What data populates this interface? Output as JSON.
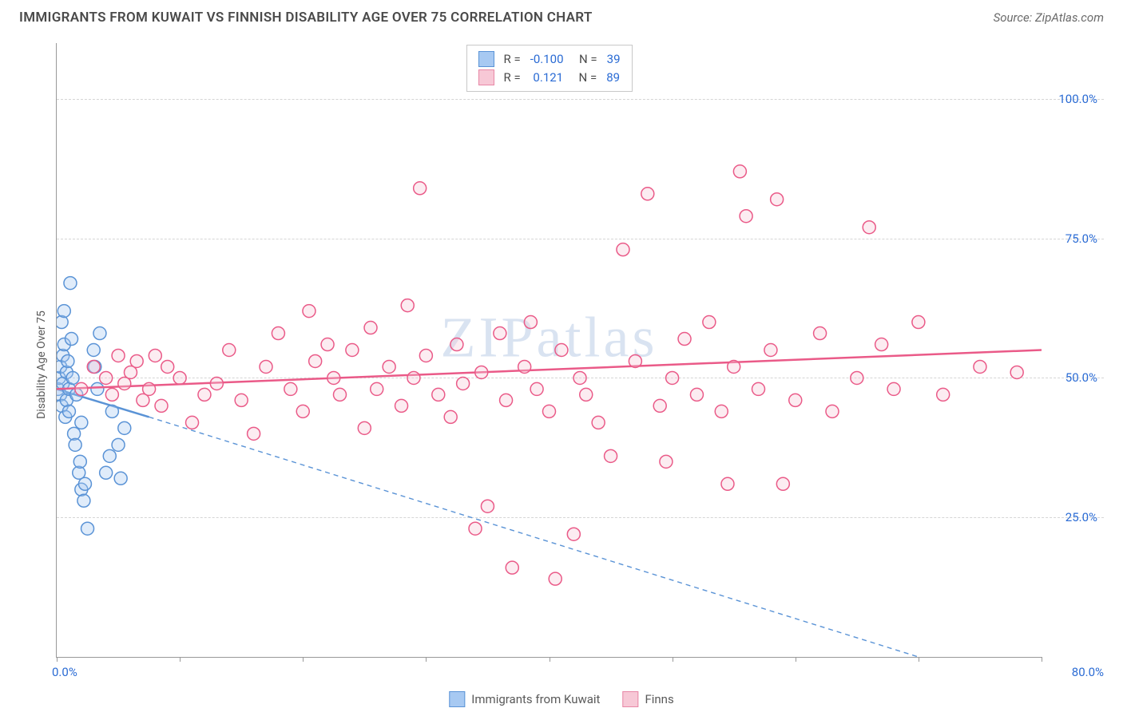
{
  "title": "IMMIGRANTS FROM KUWAIT VS FINNISH DISABILITY AGE OVER 75 CORRELATION CHART",
  "source": "Source: ZipAtlas.com",
  "watermark": "ZIPatlas",
  "y_axis_title": "Disability Age Over 75",
  "chart": {
    "type": "scatter",
    "xlim": [
      0,
      80
    ],
    "ylim": [
      0,
      110
    ],
    "x_ticks": [
      0,
      10,
      20,
      30,
      40,
      50,
      60,
      70,
      80
    ],
    "x_tick_labels_shown": {
      "0": "0.0%",
      "80": "80.0%"
    },
    "y_gridlines": [
      25,
      50,
      75,
      100
    ],
    "y_tick_labels": {
      "25": "25.0%",
      "50": "50.0%",
      "75": "75.0%",
      "100": "100.0%"
    },
    "background_color": "#ffffff",
    "grid_color": "#d5d5d5",
    "axis_color": "#999999",
    "marker_radius": 8,
    "marker_stroke_width": 1.5,
    "marker_fill_opacity": 0.35,
    "series": [
      {
        "name": "Immigrants from Kuwait",
        "color": "#5a93d6",
        "fill": "#a7c9f2",
        "R": "-0.100",
        "N": "39",
        "trend": {
          "x1": 0,
          "y1": 48,
          "x2": 7.5,
          "y2": 43,
          "solid": true,
          "width": 2.5,
          "ext_x1": 7.5,
          "ext_y1": 43,
          "ext_x2": 70,
          "ext_y2": 0,
          "dash": "6,5"
        },
        "points": [
          [
            0.1,
            48
          ],
          [
            0.2,
            50
          ],
          [
            0.3,
            47
          ],
          [
            0.3,
            52
          ],
          [
            0.4,
            45
          ],
          [
            0.5,
            49
          ],
          [
            0.5,
            54
          ],
          [
            0.6,
            56
          ],
          [
            0.7,
            43
          ],
          [
            0.8,
            51
          ],
          [
            0.8,
            46
          ],
          [
            0.9,
            53
          ],
          [
            1.0,
            48
          ],
          [
            1.0,
            44
          ],
          [
            1.1,
            67
          ],
          [
            1.2,
            57
          ],
          [
            1.3,
            50
          ],
          [
            1.4,
            40
          ],
          [
            1.5,
            38
          ],
          [
            1.6,
            47
          ],
          [
            1.8,
            33
          ],
          [
            1.9,
            35
          ],
          [
            2.0,
            30
          ],
          [
            2.0,
            42
          ],
          [
            2.2,
            28
          ],
          [
            2.3,
            31
          ],
          [
            2.5,
            23
          ],
          [
            3.0,
            55
          ],
          [
            3.1,
            52
          ],
          [
            3.3,
            48
          ],
          [
            3.5,
            58
          ],
          [
            4.0,
            33
          ],
          [
            4.3,
            36
          ],
          [
            4.5,
            44
          ],
          [
            5.0,
            38
          ],
          [
            5.2,
            32
          ],
          [
            5.5,
            41
          ],
          [
            0.4,
            60
          ],
          [
            0.6,
            62
          ]
        ]
      },
      {
        "name": "Finns",
        "color": "#ea5a88",
        "fill": "#f7c8d6",
        "R": "0.121",
        "N": "89",
        "trend": {
          "x1": 0,
          "y1": 48,
          "x2": 80,
          "y2": 55,
          "solid": true,
          "width": 2.5
        },
        "points": [
          [
            2,
            48
          ],
          [
            3,
            52
          ],
          [
            4,
            50
          ],
          [
            4.5,
            47
          ],
          [
            5,
            54
          ],
          [
            5.5,
            49
          ],
          [
            6,
            51
          ],
          [
            6.5,
            53
          ],
          [
            7,
            46
          ],
          [
            7.5,
            48
          ],
          [
            8,
            54
          ],
          [
            8.5,
            45
          ],
          [
            9,
            52
          ],
          [
            10,
            50
          ],
          [
            11,
            42
          ],
          [
            12,
            47
          ],
          [
            13,
            49
          ],
          [
            14,
            55
          ],
          [
            15,
            46
          ],
          [
            16,
            40
          ],
          [
            17,
            52
          ],
          [
            18,
            58
          ],
          [
            19,
            48
          ],
          [
            20,
            44
          ],
          [
            20.5,
            62
          ],
          [
            21,
            53
          ],
          [
            22,
            56
          ],
          [
            22.5,
            50
          ],
          [
            23,
            47
          ],
          [
            24,
            55
          ],
          [
            25,
            41
          ],
          [
            25.5,
            59
          ],
          [
            26,
            48
          ],
          [
            27,
            52
          ],
          [
            28,
            45
          ],
          [
            28.5,
            63
          ],
          [
            29,
            50
          ],
          [
            29.5,
            84
          ],
          [
            30,
            54
          ],
          [
            31,
            47
          ],
          [
            32,
            43
          ],
          [
            32.5,
            56
          ],
          [
            33,
            49
          ],
          [
            34,
            23
          ],
          [
            34.5,
            51
          ],
          [
            35,
            27
          ],
          [
            36,
            58
          ],
          [
            36.5,
            46
          ],
          [
            37,
            16
          ],
          [
            38,
            52
          ],
          [
            38.5,
            60
          ],
          [
            39,
            48
          ],
          [
            40,
            44
          ],
          [
            40.5,
            14
          ],
          [
            41,
            55
          ],
          [
            42,
            22
          ],
          [
            42.5,
            50
          ],
          [
            43,
            47
          ],
          [
            44,
            42
          ],
          [
            45,
            36
          ],
          [
            46,
            73
          ],
          [
            47,
            53
          ],
          [
            48,
            83
          ],
          [
            49,
            45
          ],
          [
            49.5,
            35
          ],
          [
            50,
            50
          ],
          [
            51,
            57
          ],
          [
            52,
            47
          ],
          [
            53,
            60
          ],
          [
            54,
            44
          ],
          [
            54.5,
            31
          ],
          [
            55,
            52
          ],
          [
            55.5,
            87
          ],
          [
            56,
            79
          ],
          [
            57,
            48
          ],
          [
            58,
            55
          ],
          [
            58.5,
            82
          ],
          [
            59,
            31
          ],
          [
            60,
            46
          ],
          [
            62,
            58
          ],
          [
            63,
            44
          ],
          [
            65,
            50
          ],
          [
            66,
            77
          ],
          [
            67,
            56
          ],
          [
            68,
            48
          ],
          [
            70,
            60
          ],
          [
            72,
            47
          ],
          [
            75,
            52
          ],
          [
            78,
            51
          ]
        ]
      }
    ]
  },
  "legend_bottom": [
    {
      "swatch": "blue",
      "label": "Immigrants from Kuwait"
    },
    {
      "swatch": "pink",
      "label": "Finns"
    }
  ]
}
